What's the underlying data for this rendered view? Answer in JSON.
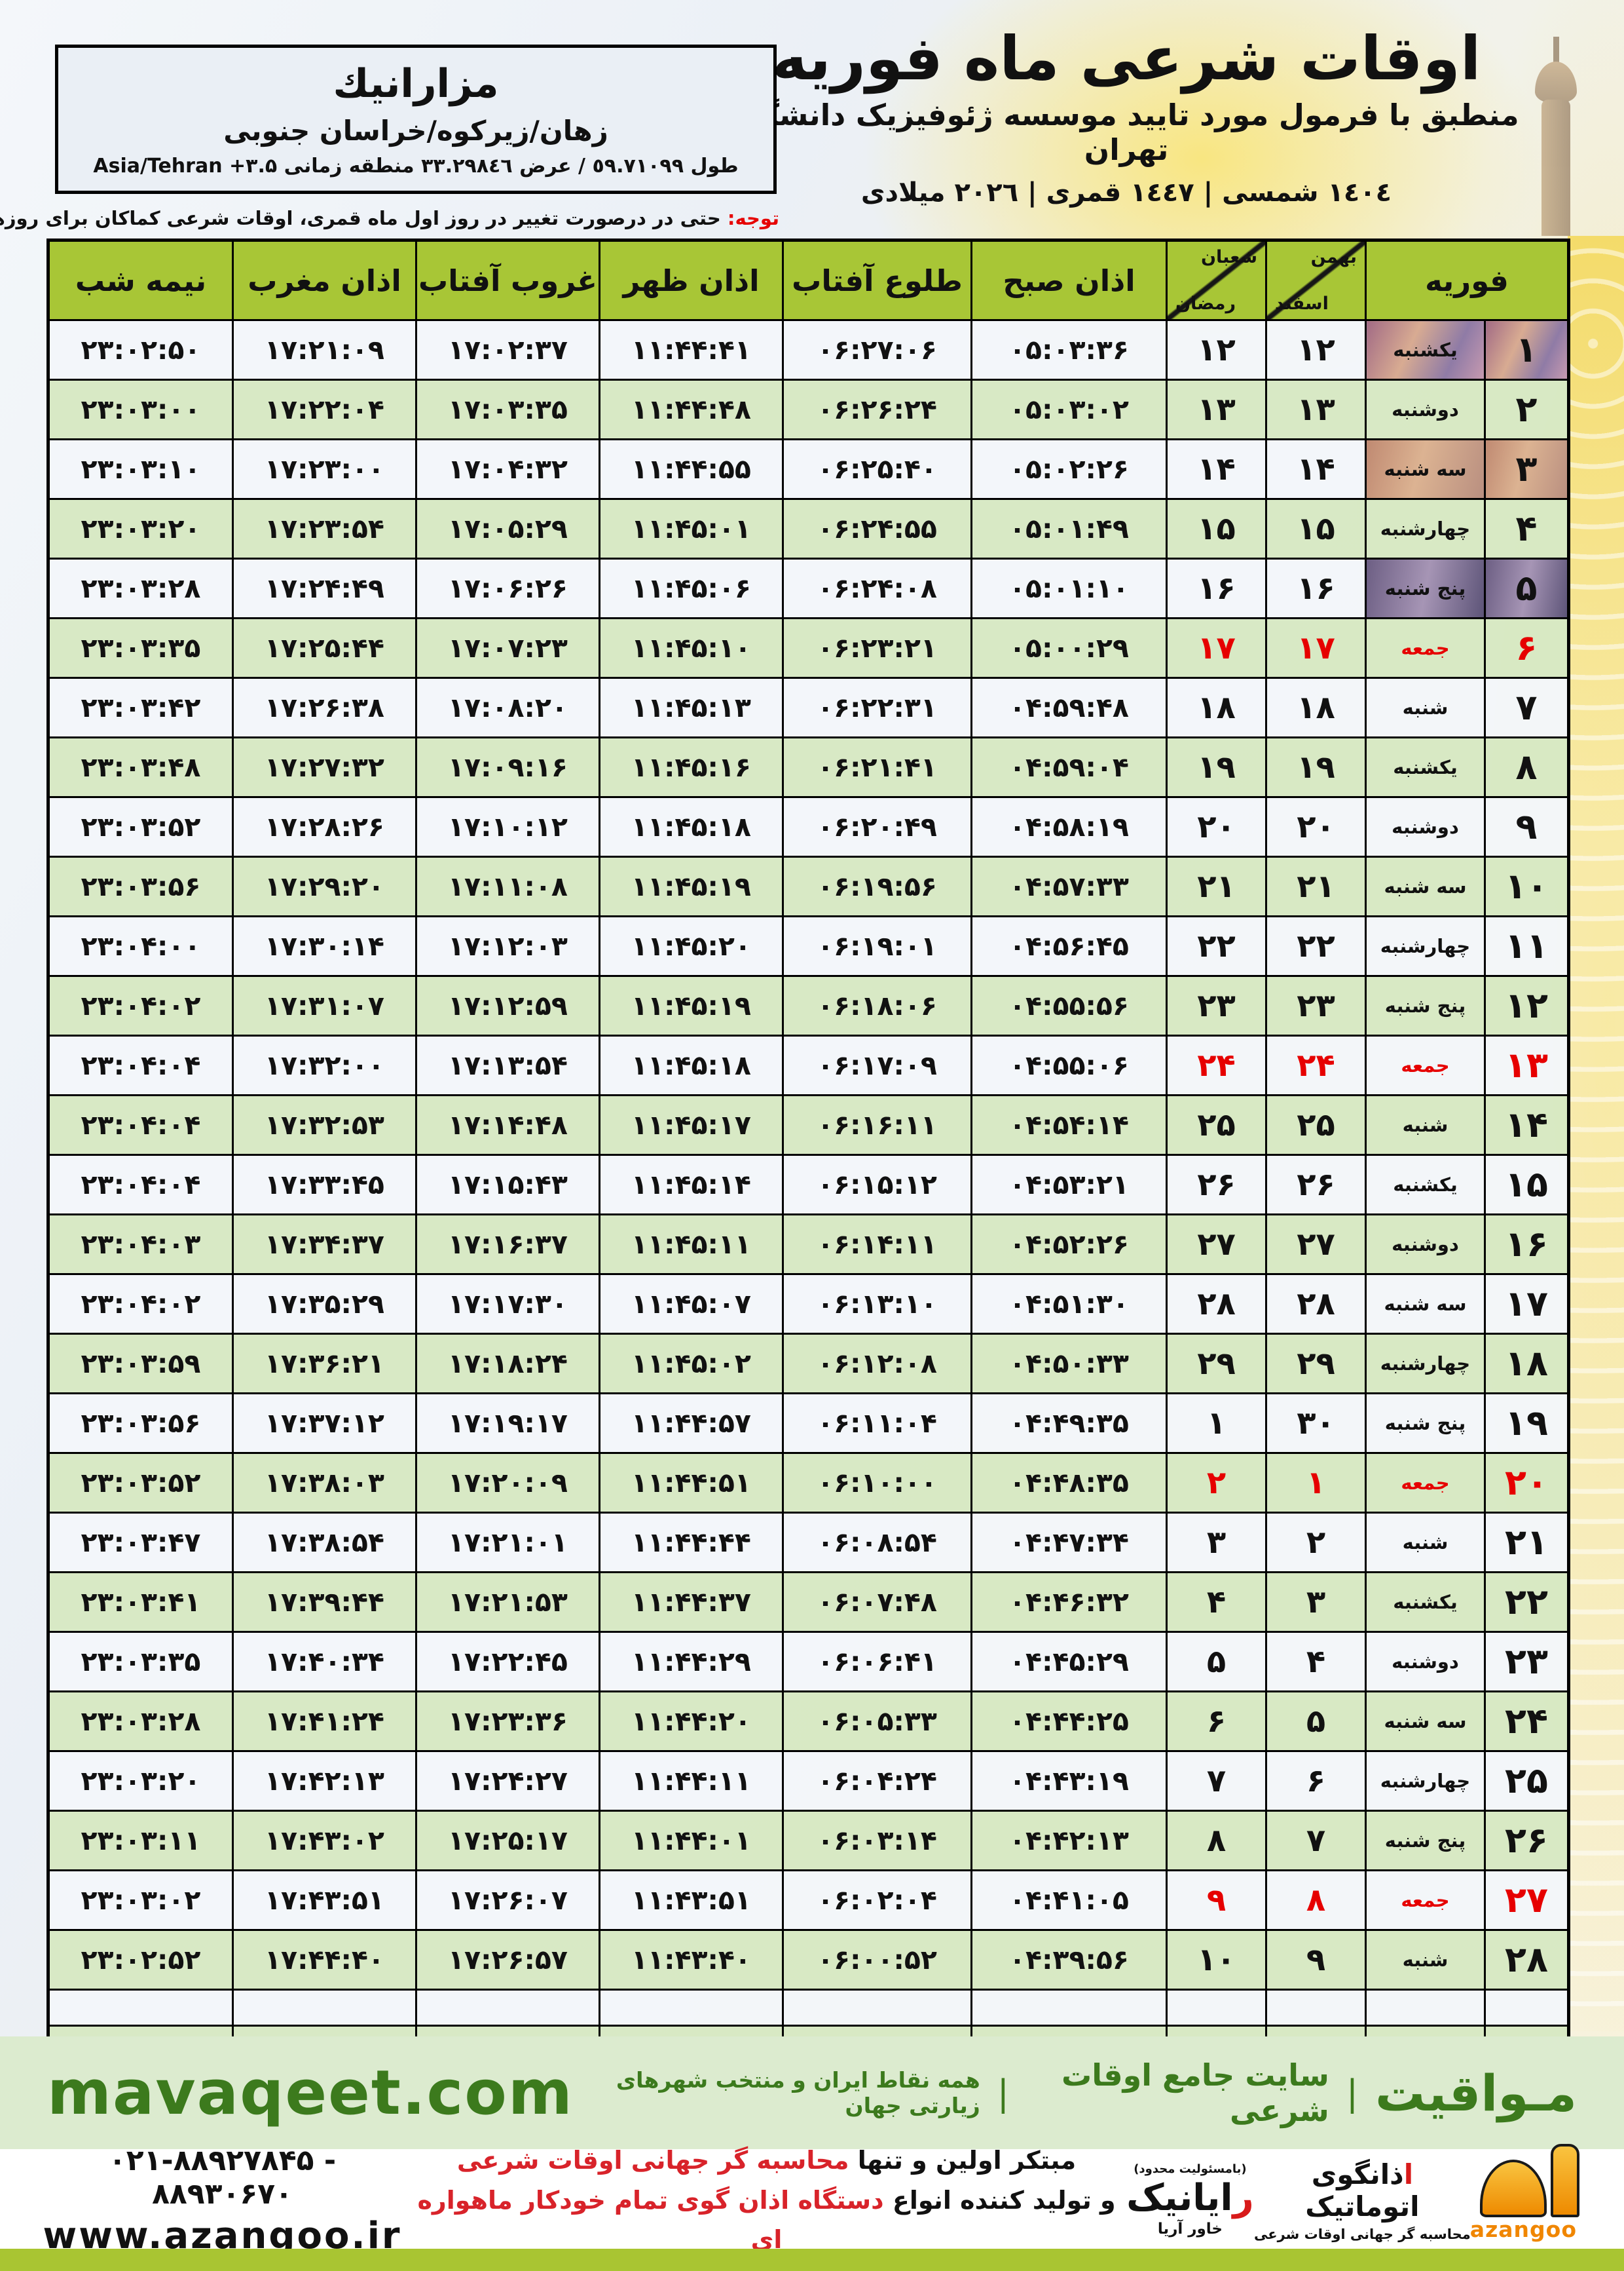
{
  "header": {
    "title": "اوقات شرعی ماه فوریه",
    "subtitle": "منطبق با فرمول مورد تایید موسسه ژئوفیزیک دانشگاه تهران",
    "years": "١٤٠٤ شمسی | ١٤٤٧ قمری | ٢٠٢٦ میلادی"
  },
  "location_box": {
    "name": "مزارانيك",
    "region": "زهان/زیرکوه/خراسان جنوبی",
    "coords_label": "طول ٥٩.٧١٠٩٩ / عرض ٣٣.٢٩٨٤٦ منطقه زمانی",
    "timezone_offset": "+۳.۵",
    "timezone_name": "Asia/Tehran"
  },
  "note": {
    "label": "توجه:",
    "text": "حتی در درصورت تغییر در روز اول ماه قمری، اوقات شرعی کماکان برای روزهای شمسی و میلادی معتبر است."
  },
  "table": {
    "column_headers": {
      "february": "فوریه",
      "jalali_top": "بهمن",
      "jalali_bottom": "اسفند",
      "hijri_top": "شعبان",
      "hijri_bottom": "رمضان",
      "fajr": "اذان صبح",
      "sunrise": "طلوع آفتاب",
      "dhuhr": "اذان ظهر",
      "sunset": "غروب آفتاب",
      "maghrib": "اذان مغرب",
      "midnight": "نیمه شب"
    },
    "row_fields": [
      "feb_day",
      "weekday",
      "jalali_day",
      "hijri_day",
      "fajr",
      "sunrise",
      "dhuhr",
      "sunset",
      "maghrib",
      "midnight",
      "is_friday"
    ],
    "rows": [
      [
        "۱",
        "یکشنبه",
        "۱۲",
        "۱۲",
        "۰۵:۰۳:۳۶",
        "۰۶:۲۷:۰۶",
        "۱۱:۴۴:۴۱",
        "۱۷:۰۲:۳۷",
        "۱۷:۲۱:۰۹",
        "۲۳:۰۲:۵۰",
        false
      ],
      [
        "۲",
        "دوشنبه",
        "۱۳",
        "۱۳",
        "۰۵:۰۳:۰۲",
        "۰۶:۲۶:۲۴",
        "۱۱:۴۴:۴۸",
        "۱۷:۰۳:۳۵",
        "۱۷:۲۲:۰۴",
        "۲۳:۰۳:۰۰",
        false
      ],
      [
        "۳",
        "سه شنبه",
        "۱۴",
        "۱۴",
        "۰۵:۰۲:۲۶",
        "۰۶:۲۵:۴۰",
        "۱۱:۴۴:۵۵",
        "۱۷:۰۴:۳۲",
        "۱۷:۲۳:۰۰",
        "۲۳:۰۳:۱۰",
        false
      ],
      [
        "۴",
        "چهارشنبه",
        "۱۵",
        "۱۵",
        "۰۵:۰۱:۴۹",
        "۰۶:۲۴:۵۵",
        "۱۱:۴۵:۰۱",
        "۱۷:۰۵:۲۹",
        "۱۷:۲۳:۵۴",
        "۲۳:۰۳:۲۰",
        false
      ],
      [
        "۵",
        "پنج شنبه",
        "۱۶",
        "۱۶",
        "۰۵:۰۱:۱۰",
        "۰۶:۲۴:۰۸",
        "۱۱:۴۵:۰۶",
        "۱۷:۰۶:۲۶",
        "۱۷:۲۴:۴۹",
        "۲۳:۰۳:۲۸",
        false
      ],
      [
        "۶",
        "جمعه",
        "۱۷",
        "۱۷",
        "۰۵:۰۰:۲۹",
        "۰۶:۲۳:۲۱",
        "۱۱:۴۵:۱۰",
        "۱۷:۰۷:۲۳",
        "۱۷:۲۵:۴۴",
        "۲۳:۰۳:۳۵",
        true
      ],
      [
        "۷",
        "شنبه",
        "۱۸",
        "۱۸",
        "۰۴:۵۹:۴۸",
        "۰۶:۲۲:۳۱",
        "۱۱:۴۵:۱۳",
        "۱۷:۰۸:۲۰",
        "۱۷:۲۶:۳۸",
        "۲۳:۰۳:۴۲",
        false
      ],
      [
        "۸",
        "یکشنبه",
        "۱۹",
        "۱۹",
        "۰۴:۵۹:۰۴",
        "۰۶:۲۱:۴۱",
        "۱۱:۴۵:۱۶",
        "۱۷:۰۹:۱۶",
        "۱۷:۲۷:۳۲",
        "۲۳:۰۳:۴۸",
        false
      ],
      [
        "۹",
        "دوشنبه",
        "۲۰",
        "۲۰",
        "۰۴:۵۸:۱۹",
        "۰۶:۲۰:۴۹",
        "۱۱:۴۵:۱۸",
        "۱۷:۱۰:۱۲",
        "۱۷:۲۸:۲۶",
        "۲۳:۰۳:۵۲",
        false
      ],
      [
        "۱۰",
        "سه شنبه",
        "۲۱",
        "۲۱",
        "۰۴:۵۷:۳۳",
        "۰۶:۱۹:۵۶",
        "۱۱:۴۵:۱۹",
        "۱۷:۱۱:۰۸",
        "۱۷:۲۹:۲۰",
        "۲۳:۰۳:۵۶",
        false
      ],
      [
        "۱۱",
        "چهارشنبه",
        "۲۲",
        "۲۲",
        "۰۴:۵۶:۴۵",
        "۰۶:۱۹:۰۱",
        "۱۱:۴۵:۲۰",
        "۱۷:۱۲:۰۳",
        "۱۷:۳۰:۱۴",
        "۲۳:۰۴:۰۰",
        false
      ],
      [
        "۱۲",
        "پنج شنبه",
        "۲۳",
        "۲۳",
        "۰۴:۵۵:۵۶",
        "۰۶:۱۸:۰۶",
        "۱۱:۴۵:۱۹",
        "۱۷:۱۲:۵۹",
        "۱۷:۳۱:۰۷",
        "۲۳:۰۴:۰۲",
        false
      ],
      [
        "۱۳",
        "جمعه",
        "۲۴",
        "۲۴",
        "۰۴:۵۵:۰۶",
        "۰۶:۱۷:۰۹",
        "۱۱:۴۵:۱۸",
        "۱۷:۱۳:۵۴",
        "۱۷:۳۲:۰۰",
        "۲۳:۰۴:۰۴",
        true
      ],
      [
        "۱۴",
        "شنبه",
        "۲۵",
        "۲۵",
        "۰۴:۵۴:۱۴",
        "۰۶:۱۶:۱۱",
        "۱۱:۴۵:۱۷",
        "۱۷:۱۴:۴۸",
        "۱۷:۳۲:۵۳",
        "۲۳:۰۴:۰۴",
        false
      ],
      [
        "۱۵",
        "یکشنبه",
        "۲۶",
        "۲۶",
        "۰۴:۵۳:۲۱",
        "۰۶:۱۵:۱۲",
        "۱۱:۴۵:۱۴",
        "۱۷:۱۵:۴۳",
        "۱۷:۳۳:۴۵",
        "۲۳:۰۴:۰۴",
        false
      ],
      [
        "۱۶",
        "دوشنبه",
        "۲۷",
        "۲۷",
        "۰۴:۵۲:۲۶",
        "۰۶:۱۴:۱۱",
        "۱۱:۴۵:۱۱",
        "۱۷:۱۶:۳۷",
        "۱۷:۳۴:۳۷",
        "۲۳:۰۴:۰۳",
        false
      ],
      [
        "۱۷",
        "سه شنبه",
        "۲۸",
        "۲۸",
        "۰۴:۵۱:۳۰",
        "۰۶:۱۳:۱۰",
        "۱۱:۴۵:۰۷",
        "۱۷:۱۷:۳۰",
        "۱۷:۳۵:۲۹",
        "۲۳:۰۴:۰۲",
        false
      ],
      [
        "۱۸",
        "چهارشنبه",
        "۲۹",
        "۲۹",
        "۰۴:۵۰:۳۳",
        "۰۶:۱۲:۰۸",
        "۱۱:۴۵:۰۲",
        "۱۷:۱۸:۲۴",
        "۱۷:۳۶:۲۱",
        "۲۳:۰۳:۵۹",
        false
      ],
      [
        "۱۹",
        "پنج شنبه",
        "۳۰",
        "۱",
        "۰۴:۴۹:۳۵",
        "۰۶:۱۱:۰۴",
        "۱۱:۴۴:۵۷",
        "۱۷:۱۹:۱۷",
        "۱۷:۳۷:۱۲",
        "۲۳:۰۳:۵۶",
        false
      ],
      [
        "۲۰",
        "جمعه",
        "۱",
        "۲",
        "۰۴:۴۸:۳۵",
        "۰۶:۱۰:۰۰",
        "۱۱:۴۴:۵۱",
        "۱۷:۲۰:۰۹",
        "۱۷:۳۸:۰۳",
        "۲۳:۰۳:۵۲",
        true
      ],
      [
        "۲۱",
        "شنبه",
        "۲",
        "۳",
        "۰۴:۴۷:۳۴",
        "۰۶:۰۸:۵۴",
        "۱۱:۴۴:۴۴",
        "۱۷:۲۱:۰۱",
        "۱۷:۳۸:۵۴",
        "۲۳:۰۳:۴۷",
        false
      ],
      [
        "۲۲",
        "یکشنبه",
        "۳",
        "۴",
        "۰۴:۴۶:۳۲",
        "۰۶:۰۷:۴۸",
        "۱۱:۴۴:۳۷",
        "۱۷:۲۱:۵۳",
        "۱۷:۳۹:۴۴",
        "۲۳:۰۳:۴۱",
        false
      ],
      [
        "۲۳",
        "دوشنبه",
        "۴",
        "۵",
        "۰۴:۴۵:۲۹",
        "۰۶:۰۶:۴۱",
        "۱۱:۴۴:۲۹",
        "۱۷:۲۲:۴۵",
        "۱۷:۴۰:۳۴",
        "۲۳:۰۳:۳۵",
        false
      ],
      [
        "۲۴",
        "سه شنبه",
        "۵",
        "۶",
        "۰۴:۴۴:۲۵",
        "۰۶:۰۵:۳۳",
        "۱۱:۴۴:۲۰",
        "۱۷:۲۳:۳۶",
        "۱۷:۴۱:۲۴",
        "۲۳:۰۳:۲۸",
        false
      ],
      [
        "۲۵",
        "چهارشنبه",
        "۶",
        "۷",
        "۰۴:۴۳:۱۹",
        "۰۶:۰۴:۲۴",
        "۱۱:۴۴:۱۱",
        "۱۷:۲۴:۲۷",
        "۱۷:۴۲:۱۳",
        "۲۳:۰۳:۲۰",
        false
      ],
      [
        "۲۶",
        "پنج شنبه",
        "۷",
        "۸",
        "۰۴:۴۲:۱۳",
        "۰۶:۰۳:۱۴",
        "۱۱:۴۴:۰۱",
        "۱۷:۲۵:۱۷",
        "۱۷:۴۳:۰۲",
        "۲۳:۰۳:۱۱",
        false
      ],
      [
        "۲۷",
        "جمعه",
        "۸",
        "۹",
        "۰۴:۴۱:۰۵",
        "۰۶:۰۲:۰۴",
        "۱۱:۴۳:۵۱",
        "۱۷:۲۶:۰۷",
        "۱۷:۴۳:۵۱",
        "۲۳:۰۳:۰۲",
        true
      ],
      [
        "۲۸",
        "شنبه",
        "۹",
        "۱۰",
        "۰۴:۳۹:۵۶",
        "۰۶:۰۰:۵۲",
        "۱۱:۴۳:۴۰",
        "۱۷:۲۶:۵۷",
        "۱۷:۴۴:۴۰",
        "۲۳:۰۲:۵۲",
        false
      ]
    ],
    "empty_row_count": 3
  },
  "mavaqeet_bar": {
    "brand": "مـواقیت",
    "separator": "|",
    "tagline_main": "سایت جامع اوقات شرعی",
    "tagline_sub": "همه نقاط ایران و منتخب شهرهای زیارتی جهان",
    "url": "mavaqeet.com"
  },
  "footer": {
    "phones": "۰۲۱-۸۸۹۲۷۸۴۵ - ۸۸۹۳۰۶۷۰",
    "website": "www.azangoo.ir",
    "slogan_line1_black": "مبتکر اولین و تنها ",
    "slogan_line1_red": "محاسبه گر جهانی اوقات شرعی",
    "slogan_line2_black": "و تولید کننده انواع ",
    "slogan_line2_red": "دستگاه اذان گوی تمام خودکار ماهواره ای",
    "rayanik_note": "(بامسئولیت محدود)",
    "rayanik_name_initial": "ر",
    "rayanik_name_rest": "ایانیک",
    "rayanik_sub": "خاور آریا",
    "azangoo_initial": "ا",
    "azangoo_title_rest": "ذانگوی اتوماتیک",
    "azangoo_sub": "محاسبه گر جهانی اوقات شرعی",
    "azangoo_en": "azangoo"
  },
  "colors": {
    "header_green": "#a8c636",
    "row_green": "#d6e8c3",
    "friday_red": "#e60000",
    "brand_dark_green": "#3c7a1d",
    "azangoo_orange": "#f08600",
    "bottom_bar_green": "#a9c532"
  }
}
